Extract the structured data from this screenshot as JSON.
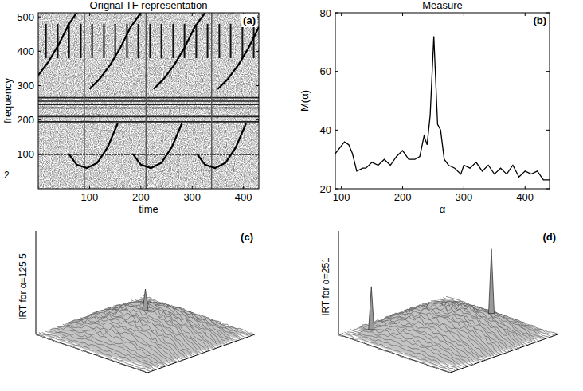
{
  "page": {
    "margin_text": "2"
  },
  "chart_data": [
    {
      "type": "image",
      "title": "Orignal TF representation",
      "panel_label": "(a)",
      "x_label": "time",
      "y_label": "frequency",
      "xlim": [
        0,
        430
      ],
      "ylim": [
        0,
        512
      ],
      "xticks": [
        100,
        200,
        300,
        400
      ],
      "yticks": [
        100,
        200,
        300,
        400,
        500
      ],
      "horizontal_components": [
        100,
        195,
        210,
        235,
        245,
        255,
        265
      ],
      "transients": [
        90,
        210,
        338
      ],
      "clicks": [
        15,
        38,
        60,
        83,
        105,
        128,
        150,
        173,
        195,
        218,
        240,
        263,
        285,
        308,
        330,
        353,
        375,
        398,
        420
      ],
      "click_band": [
        380,
        480
      ],
      "chirps": [
        {
          "x": [
            60,
            75,
            95,
            115,
            135,
            155
          ],
          "y": [
            100,
            70,
            60,
            75,
            120,
            190
          ]
        },
        {
          "x": [
            185,
            200,
            220,
            240,
            260,
            280
          ],
          "y": [
            100,
            70,
            60,
            75,
            120,
            190
          ]
        },
        {
          "x": [
            310,
            325,
            345,
            365,
            385,
            405
          ],
          "y": [
            100,
            70,
            60,
            75,
            120,
            190
          ]
        },
        {
          "x": [
            0,
            20,
            40,
            60,
            75
          ],
          "y": [
            330,
            370,
            420,
            480,
            512
          ]
        },
        {
          "x": [
            100,
            120,
            140,
            160,
            180,
            200
          ],
          "y": [
            290,
            320,
            360,
            410,
            470,
            512
          ]
        },
        {
          "x": [
            225,
            245,
            265,
            285,
            305,
            325
          ],
          "y": [
            290,
            320,
            360,
            410,
            470,
            512
          ]
        },
        {
          "x": [
            350,
            370,
            390,
            410,
            430
          ],
          "y": [
            290,
            320,
            360,
            410,
            470
          ]
        }
      ]
    },
    {
      "type": "line",
      "title": "Measure",
      "panel_label": "(b)",
      "x_label": "α",
      "y_label": "M(α)",
      "xlim": [
        90,
        440
      ],
      "ylim": [
        20,
        80
      ],
      "xticks": [
        100,
        200,
        300,
        400
      ],
      "yticks": [
        20,
        40,
        60,
        80
      ],
      "color": "#000000",
      "x": [
        90,
        105,
        112,
        118,
        125,
        135,
        140,
        150,
        160,
        170,
        180,
        190,
        200,
        210,
        220,
        228,
        235,
        240,
        245,
        251,
        257,
        262,
        268,
        275,
        285,
        295,
        300,
        310,
        320,
        330,
        340,
        350,
        360,
        370,
        380,
        390,
        400,
        410,
        420,
        430,
        440
      ],
      "values": [
        32,
        36,
        35,
        32,
        26,
        27,
        27,
        29,
        28,
        30,
        28,
        31,
        33,
        30,
        30,
        31,
        38,
        35,
        45,
        72,
        42,
        40,
        30,
        28,
        27,
        25,
        28,
        27,
        29,
        26,
        28,
        25,
        27,
        25,
        28,
        24,
        26,
        25,
        26,
        23,
        23
      ]
    },
    {
      "type": "surface",
      "panel_label": "(c)",
      "z_label": "IRT for α=125.5",
      "tick_labels": false,
      "peaks": [
        {
          "u": 0.5,
          "v": 0.5,
          "height": 3
        }
      ]
    },
    {
      "type": "surface",
      "panel_label": "(d)",
      "z_label": "IRT for α=251",
      "tick_labels": false,
      "peaks": [
        {
          "u": 0.15,
          "v": 0.15,
          "height": 6
        },
        {
          "u": 0.6,
          "v": 0.8,
          "height": 9
        }
      ]
    }
  ]
}
